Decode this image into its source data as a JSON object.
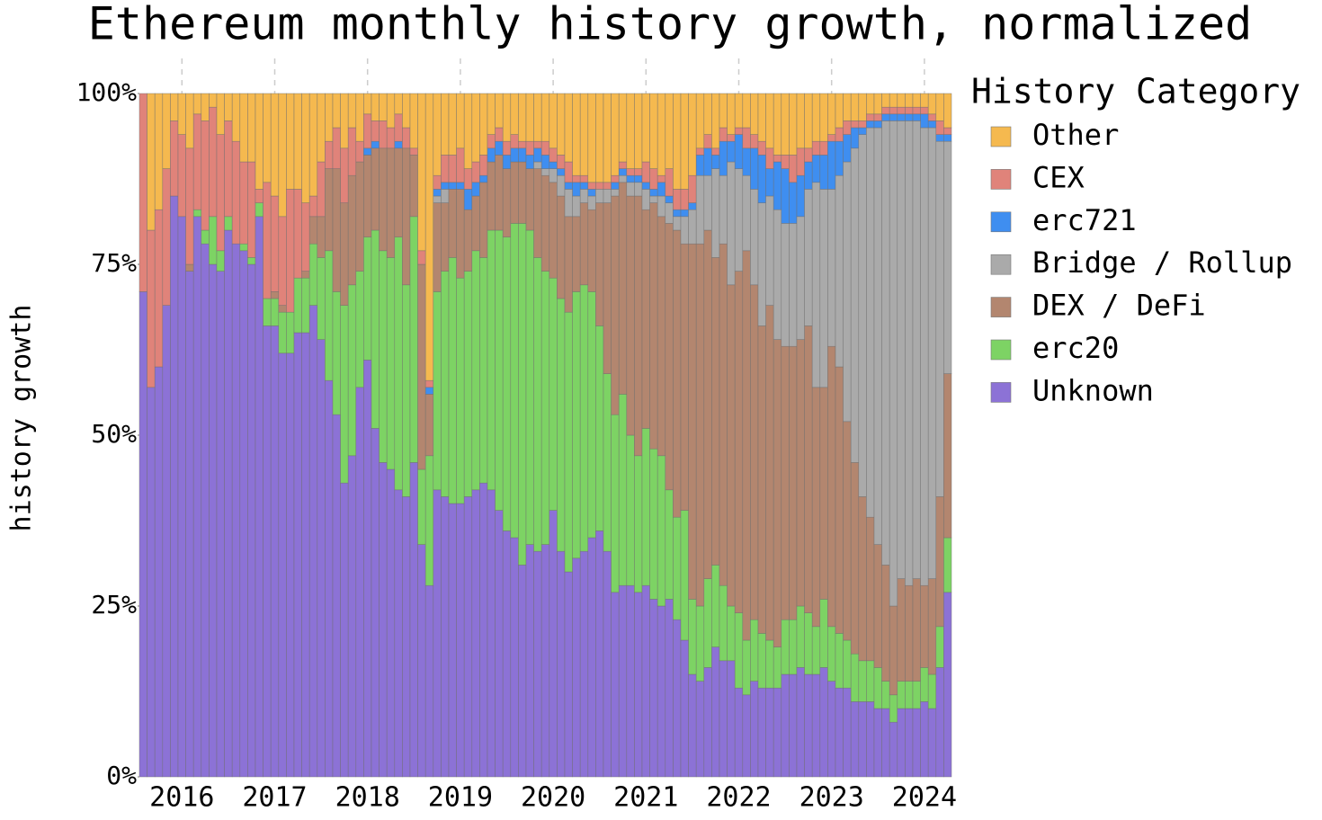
{
  "chart_data": {
    "type": "stacked_bar",
    "title": "Ethereum monthly history growth, normalized",
    "y_label": "history growth",
    "legend_title": "History Category",
    "legend": "right",
    "grid": "x",
    "ylim": [
      0,
      100
    ],
    "yticks": [
      {
        "value": 0,
        "label": "0%"
      },
      {
        "value": 25,
        "label": "25%"
      },
      {
        "value": 50,
        "label": "50%"
      },
      {
        "value": 75,
        "label": "75%"
      },
      {
        "value": 100,
        "label": "100%"
      }
    ],
    "categories": [
      null,
      null,
      null,
      null,
      null,
      "2016",
      null,
      null,
      null,
      null,
      null,
      null,
      null,
      null,
      null,
      null,
      null,
      "2017",
      null,
      null,
      null,
      null,
      null,
      null,
      null,
      null,
      null,
      null,
      null,
      "2018",
      null,
      null,
      null,
      null,
      null,
      null,
      null,
      null,
      null,
      null,
      null,
      "2019",
      null,
      null,
      null,
      null,
      null,
      null,
      null,
      null,
      null,
      null,
      null,
      "2020",
      null,
      null,
      null,
      null,
      null,
      null,
      null,
      null,
      null,
      null,
      null,
      "2021",
      null,
      null,
      null,
      null,
      null,
      null,
      null,
      null,
      null,
      null,
      null,
      "2022",
      null,
      null,
      null,
      null,
      null,
      null,
      null,
      null,
      null,
      null,
      null,
      "2023",
      null,
      null,
      null,
      null,
      null,
      null,
      null,
      null,
      null,
      null,
      null,
      "2024",
      null,
      null,
      null
    ],
    "series": [
      {
        "name": "Other",
        "color": "#f5b94f",
        "values": [
          0,
          20,
          17,
          11,
          4,
          6,
          8,
          3,
          4,
          2,
          6,
          4,
          7,
          10,
          10,
          14,
          13,
          15,
          18,
          14,
          14,
          16,
          15,
          10,
          7,
          5,
          8,
          5,
          7,
          3,
          4,
          4,
          5,
          3,
          5,
          8,
          23,
          42,
          12,
          9,
          9,
          8,
          11,
          10,
          9,
          6,
          5,
          7,
          6,
          7,
          7,
          7,
          7,
          8,
          9,
          10,
          12,
          12,
          13,
          13,
          13,
          12,
          10,
          11,
          11,
          10,
          11,
          12,
          11,
          14,
          14,
          12,
          8,
          6,
          8,
          5,
          6,
          5,
          5,
          6,
          7,
          8,
          9,
          9,
          9,
          8,
          8,
          7,
          7,
          6,
          5,
          4,
          4,
          4,
          3,
          3,
          2,
          2,
          2,
          2,
          2,
          2,
          3,
          4,
          5
        ]
      },
      {
        "name": "CEX",
        "color": "#e0837a",
        "values": [
          29,
          23,
          23,
          20,
          11,
          12,
          17,
          14,
          16,
          16,
          17,
          14,
          15,
          12,
          14,
          2,
          17,
          14,
          13,
          18,
          13,
          10,
          3,
          8,
          4,
          6,
          8,
          7,
          3,
          5,
          3,
          4,
          3,
          4,
          3,
          1,
          2,
          1,
          2,
          4,
          4,
          5,
          3,
          3,
          3,
          2,
          2,
          2,
          2,
          1,
          2,
          1,
          2,
          2,
          2,
          3,
          1,
          1,
          1,
          1,
          1,
          1,
          1,
          1,
          1,
          3,
          3,
          1,
          4,
          3,
          3,
          4,
          1,
          2,
          1,
          2,
          1,
          1,
          3,
          2,
          2,
          3,
          1,
          2,
          4,
          4,
          2,
          2,
          2,
          1,
          2,
          2,
          1,
          1,
          1,
          1,
          1,
          1,
          1,
          1,
          1,
          1,
          1,
          2,
          1
        ]
      },
      {
        "name": "erc721",
        "color": "#3f8ef0",
        "values": [
          0,
          0,
          0,
          0,
          0,
          0,
          0,
          0,
          0,
          0,
          0,
          0,
          0,
          0,
          0,
          0,
          0,
          0,
          0,
          0,
          0,
          0,
          0,
          0,
          0,
          0,
          0,
          0,
          0,
          1,
          1,
          0,
          0,
          1,
          0,
          0,
          0,
          1,
          1,
          1,
          1,
          1,
          3,
          2,
          1,
          2,
          2,
          2,
          2,
          2,
          2,
          2,
          2,
          1,
          1,
          1,
          2,
          1,
          1,
          0,
          0,
          1,
          1,
          1,
          1,
          1,
          1,
          2,
          1,
          1,
          1,
          1,
          3,
          4,
          2,
          5,
          3,
          5,
          4,
          6,
          7,
          4,
          7,
          8,
          6,
          6,
          4,
          4,
          5,
          7,
          5,
          4,
          3,
          1,
          1,
          1,
          1,
          1,
          1,
          1,
          1,
          2,
          1,
          1,
          1
        ]
      },
      {
        "name": "Bridge / Rollup",
        "color": "#aaaaaa",
        "values": [
          0,
          0,
          0,
          0,
          0,
          0,
          0,
          0,
          0,
          0,
          0,
          0,
          0,
          0,
          0,
          0,
          0,
          0,
          0,
          0,
          0,
          0,
          0,
          0,
          0,
          0,
          0,
          0,
          0,
          0,
          0,
          0,
          0,
          0,
          0,
          0,
          0,
          0,
          1,
          2,
          0,
          0,
          0,
          0,
          0,
          0,
          0,
          0,
          0,
          0,
          0,
          1,
          1,
          2,
          3,
          4,
          3,
          2,
          2,
          2,
          2,
          1,
          1,
          2,
          2,
          3,
          1,
          3,
          3,
          2,
          4,
          5,
          10,
          8,
          13,
          10,
          18,
          15,
          11,
          14,
          18,
          16,
          19,
          18,
          18,
          18,
          20,
          30,
          29,
          23,
          28,
          38,
          46,
          53,
          57,
          61,
          65,
          71,
          67,
          68,
          67,
          67,
          66,
          52,
          34
        ]
      },
      {
        "name": "DEX / DeFi",
        "color": "#b3866f",
        "values": [
          0,
          0,
          0,
          0,
          0,
          0,
          1,
          0,
          0,
          0,
          0,
          0,
          0,
          0,
          0,
          0,
          0,
          1,
          1,
          0,
          0,
          1,
          4,
          6,
          12,
          18,
          15,
          16,
          16,
          12,
          12,
          15,
          16,
          13,
          20,
          9,
          30,
          9,
          13,
          10,
          10,
          13,
          9,
          8,
          11,
          10,
          11,
          10,
          9,
          9,
          9,
          13,
          14,
          14,
          15,
          14,
          11,
          12,
          12,
          18,
          25,
          32,
          31,
          35,
          38,
          32,
          36,
          35,
          39,
          42,
          39,
          52,
          53,
          51,
          45,
          50,
          47,
          50,
          57,
          49,
          45,
          49,
          45,
          40,
          40,
          39,
          42,
          35,
          31,
          41,
          39,
          32,
          28,
          24,
          21,
          18,
          17,
          13,
          15,
          14,
          15,
          12,
          14,
          19,
          24
        ]
      },
      {
        "name": "erc20",
        "color": "#7dd364",
        "values": [
          0,
          0,
          0,
          0,
          0,
          0,
          0,
          1,
          2,
          7,
          3,
          2,
          0,
          1,
          1,
          2,
          4,
          4,
          6,
          6,
          8,
          8,
          9,
          12,
          19,
          18,
          26,
          25,
          17,
          18,
          29,
          31,
          31,
          37,
          31,
          36,
          11,
          19,
          29,
          33,
          36,
          33,
          33,
          35,
          33,
          38,
          41,
          43,
          46,
          50,
          46,
          43,
          40,
          34,
          37,
          38,
          39,
          39,
          36,
          30,
          26,
          26,
          28,
          22,
          20,
          23,
          22,
          22,
          16,
          15,
          19,
          11,
          11,
          13,
          12,
          11,
          8,
          11,
          8,
          9,
          8,
          7,
          6,
          8,
          8,
          9,
          9,
          7,
          10,
          8,
          8,
          7,
          7,
          6,
          6,
          6,
          4,
          4,
          4,
          4,
          4,
          5,
          5,
          6,
          8
        ]
      },
      {
        "name": "Unknown",
        "color": "#8c72d6",
        "values": [
          71,
          57,
          60,
          69,
          85,
          82,
          74,
          82,
          78,
          75,
          74,
          80,
          78,
          77,
          75,
          82,
          66,
          66,
          62,
          62,
          65,
          65,
          69,
          64,
          58,
          53,
          43,
          47,
          57,
          61,
          51,
          46,
          45,
          42,
          41,
          46,
          34,
          28,
          42,
          41,
          40,
          40,
          41,
          42,
          43,
          42,
          39,
          36,
          35,
          31,
          34,
          33,
          34,
          39,
          33,
          30,
          32,
          33,
          35,
          36,
          33,
          27,
          28,
          28,
          27,
          28,
          26,
          25,
          26,
          23,
          20,
          15,
          14,
          16,
          19,
          17,
          17,
          13,
          12,
          14,
          13,
          13,
          13,
          15,
          15,
          16,
          15,
          15,
          16,
          14,
          13,
          13,
          11,
          11,
          11,
          10,
          10,
          8,
          10,
          10,
          10,
          11,
          10,
          16,
          27
        ]
      }
    ]
  }
}
